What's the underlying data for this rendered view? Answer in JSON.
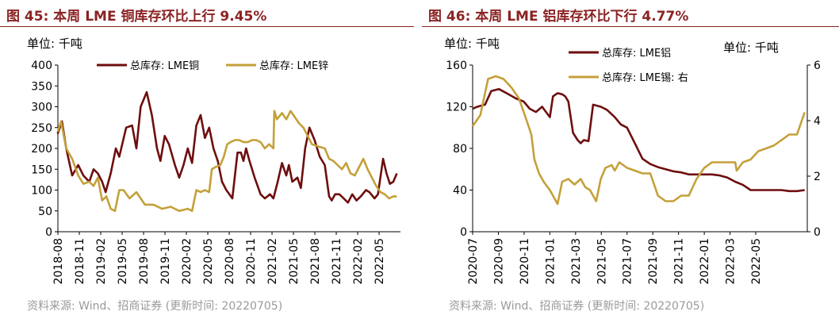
{
  "panels": [
    {
      "title": "图 45:  本周 LME 铜库存环比上行 9.45%",
      "source": "资料来源: Wind、招商证券 (更新时间: 20220705)"
    },
    {
      "title": "图 46:  本周 LME 铝库存环比下行 4.77%",
      "source": "资料来源: Wind、招商证券 (更新时间: 20220705)"
    }
  ],
  "colors": {
    "title": "#8B2323",
    "dark": "#6E0E0E",
    "gold": "#C4A039",
    "axis": "#000000",
    "source": "#9a9a9a"
  },
  "chart_data": [
    {
      "type": "line",
      "unit_label": "单位:  千吨",
      "xlabel": "",
      "ylabel": "",
      "ylim": [
        0,
        400
      ],
      "yticks": [
        0,
        50,
        100,
        150,
        200,
        250,
        300,
        350,
        400
      ],
      "xlim": [
        2018.583,
        2022.583
      ],
      "xticks": [
        "2018-08",
        "2018-11",
        "2019-02",
        "2019-05",
        "2019-08",
        "2019-11",
        "2020-02",
        "2020-05",
        "2020-08",
        "2020-11",
        "2021-02",
        "2021-05",
        "2021-08",
        "2021-11",
        "2022-02",
        "2022-05"
      ],
      "legend_position": "top",
      "series": [
        {
          "name": "总库存: LME铜",
          "color": "#6E0E0E",
          "x": [
            2018.58,
            2018.63,
            2018.68,
            2018.75,
            2018.82,
            2018.88,
            2018.95,
            2019.0,
            2019.05,
            2019.1,
            2019.14,
            2019.2,
            2019.26,
            2019.3,
            2019.38,
            2019.45,
            2019.5,
            2019.55,
            2019.62,
            2019.68,
            2019.74,
            2019.78,
            2019.83,
            2019.88,
            2019.95,
            2020.0,
            2020.05,
            2020.1,
            2020.15,
            2020.2,
            2020.25,
            2020.3,
            2020.35,
            2020.4,
            2020.45,
            2020.5,
            2020.55,
            2020.62,
            2020.68,
            2020.72,
            2020.75,
            2020.78,
            2020.82,
            2020.88,
            2020.95,
            2021.0,
            2021.06,
            2021.1,
            2021.15,
            2021.2,
            2021.25,
            2021.28,
            2021.32,
            2021.38,
            2021.42,
            2021.47,
            2021.52,
            2021.58,
            2021.64,
            2021.7,
            2021.75,
            2021.78,
            2021.82,
            2021.87,
            2021.92,
            2021.97,
            2022.02,
            2022.07,
            2022.12,
            2022.18,
            2022.22,
            2022.28,
            2022.32,
            2022.38,
            2022.42,
            2022.46,
            2022.5,
            2022.54
          ],
          "values": [
            235,
            265,
            200,
            135,
            160,
            135,
            120,
            150,
            140,
            120,
            95,
            140,
            200,
            180,
            250,
            255,
            200,
            300,
            335,
            280,
            200,
            170,
            230,
            210,
            160,
            130,
            160,
            200,
            165,
            255,
            280,
            225,
            250,
            200,
            170,
            120,
            100,
            80,
            190,
            190,
            170,
            200,
            170,
            130,
            90,
            80,
            90,
            80,
            120,
            165,
            135,
            160,
            120,
            130,
            105,
            200,
            250,
            220,
            180,
            160,
            85,
            75,
            90,
            90,
            80,
            70,
            90,
            75,
            85,
            100,
            95,
            80,
            90,
            175,
            140,
            115,
            120,
            140
          ]
        },
        {
          "name": "总库存: LME锌",
          "color": "#C4A039",
          "x": [
            2018.58,
            2018.62,
            2018.68,
            2018.75,
            2018.82,
            2018.88,
            2018.95,
            2019.0,
            2019.05,
            2019.1,
            2019.15,
            2019.2,
            2019.25,
            2019.3,
            2019.35,
            2019.42,
            2019.5,
            2019.55,
            2019.6,
            2019.7,
            2019.8,
            2019.9,
            2020.0,
            2020.1,
            2020.15,
            2020.2,
            2020.25,
            2020.3,
            2020.35,
            2020.38,
            2020.42,
            2020.48,
            2020.52,
            2020.56,
            2020.6,
            2020.65,
            2020.7,
            2020.75,
            2020.8,
            2020.85,
            2020.9,
            2020.95,
            2021.0,
            2021.05,
            2021.1,
            2021.11,
            2021.14,
            2021.2,
            2021.25,
            2021.3,
            2021.35,
            2021.4,
            2021.45,
            2021.5,
            2021.55,
            2021.62,
            2021.7,
            2021.75,
            2021.8,
            2021.85,
            2021.9,
            2021.95,
            2022.0,
            2022.05,
            2022.1,
            2022.15,
            2022.2,
            2022.25,
            2022.3,
            2022.35,
            2022.4,
            2022.45,
            2022.5,
            2022.54
          ],
          "values": [
            240,
            265,
            200,
            175,
            135,
            115,
            120,
            110,
            130,
            75,
            85,
            55,
            50,
            100,
            100,
            80,
            95,
            80,
            65,
            65,
            55,
            60,
            50,
            55,
            50,
            100,
            95,
            100,
            95,
            150,
            155,
            160,
            180,
            210,
            215,
            220,
            220,
            215,
            215,
            220,
            220,
            215,
            200,
            210,
            200,
            290,
            270,
            285,
            270,
            290,
            275,
            260,
            250,
            230,
            210,
            205,
            200,
            175,
            170,
            160,
            150,
            165,
            140,
            135,
            155,
            175,
            150,
            130,
            110,
            95,
            90,
            80,
            85,
            85
          ]
        }
      ]
    },
    {
      "type": "line",
      "unit_label": "单位:  千吨",
      "unit_label_right": "单位:  千吨",
      "xlabel": "",
      "ylabel": "",
      "ylim": [
        0,
        160
      ],
      "yticks": [
        0,
        40,
        80,
        120,
        160
      ],
      "ylim_right": [
        0,
        6
      ],
      "yticks_right": [
        0,
        2,
        4,
        6
      ],
      "xlim": [
        2020.5,
        2022.667
      ],
      "xticks": [
        "2020-07",
        "2020-09",
        "2020-11",
        "2021-01",
        "2021-03",
        "2021-05",
        "2021-07",
        "2021-09",
        "2021-11",
        "2022-01",
        "2022-03",
        "2022-05"
      ],
      "legend_position": "top",
      "series": [
        {
          "name": "总库存: LME铝",
          "color": "#6E0E0E",
          "axis": "left",
          "x": [
            2020.5,
            2020.53,
            2020.58,
            2020.62,
            2020.67,
            2020.72,
            2020.78,
            2020.83,
            2020.87,
            2020.91,
            2020.95,
            2021.0,
            2021.02,
            2021.05,
            2021.08,
            2021.1,
            2021.12,
            2021.15,
            2021.18,
            2021.2,
            2021.22,
            2021.25,
            2021.28,
            2021.33,
            2021.37,
            2021.42,
            2021.46,
            2021.5,
            2021.55,
            2021.6,
            2021.65,
            2021.7,
            2021.75,
            2021.8,
            2021.85,
            2021.9,
            2021.95,
            2022.0,
            2022.05,
            2022.1,
            2022.15,
            2022.2,
            2022.25,
            2022.3,
            2022.35,
            2022.4,
            2022.45,
            2022.5,
            2022.55,
            2022.6,
            2022.65
          ],
          "values": [
            118,
            120,
            122,
            135,
            137,
            133,
            128,
            125,
            118,
            115,
            120,
            110,
            130,
            133,
            132,
            130,
            125,
            95,
            88,
            85,
            88,
            87,
            122,
            120,
            117,
            110,
            103,
            100,
            85,
            70,
            65,
            62,
            60,
            58,
            57,
            55,
            55,
            55,
            55,
            54,
            52,
            48,
            45,
            40,
            40,
            40,
            40,
            40,
            39,
            39,
            40
          ]
        },
        {
          "name": "总库存: LME锡:  右",
          "color": "#C4A039",
          "axis": "right",
          "x": [
            2020.5,
            2020.55,
            2020.6,
            2020.65,
            2020.7,
            2020.75,
            2020.8,
            2020.85,
            2020.88,
            2020.9,
            2020.93,
            2020.96,
            2021.0,
            2021.03,
            2021.05,
            2021.08,
            2021.12,
            2021.16,
            2021.2,
            2021.23,
            2021.26,
            2021.3,
            2021.33,
            2021.36,
            2021.4,
            2021.42,
            2021.45,
            2021.5,
            2021.55,
            2021.6,
            2021.65,
            2021.7,
            2021.75,
            2021.8,
            2021.85,
            2021.9,
            2021.95,
            2022.0,
            2022.05,
            2022.1,
            2022.15,
            2022.2,
            2022.21,
            2022.25,
            2022.3,
            2022.35,
            2022.4,
            2022.45,
            2022.5,
            2022.55,
            2022.6,
            2022.65
          ],
          "values": [
            3.8,
            4.2,
            5.5,
            5.6,
            5.5,
            5.2,
            4.8,
            4.0,
            3.5,
            2.6,
            2.1,
            1.8,
            1.5,
            1.2,
            1.0,
            1.8,
            1.9,
            1.7,
            1.9,
            1.6,
            1.5,
            1.1,
            1.9,
            2.3,
            2.4,
            2.2,
            2.5,
            2.3,
            2.2,
            2.1,
            2.1,
            1.3,
            1.1,
            1.1,
            1.3,
            1.3,
            1.9,
            2.3,
            2.5,
            2.5,
            2.5,
            2.5,
            2.2,
            2.5,
            2.6,
            2.9,
            3.0,
            3.1,
            3.3,
            3.5,
            3.5,
            4.3
          ]
        }
      ]
    }
  ]
}
